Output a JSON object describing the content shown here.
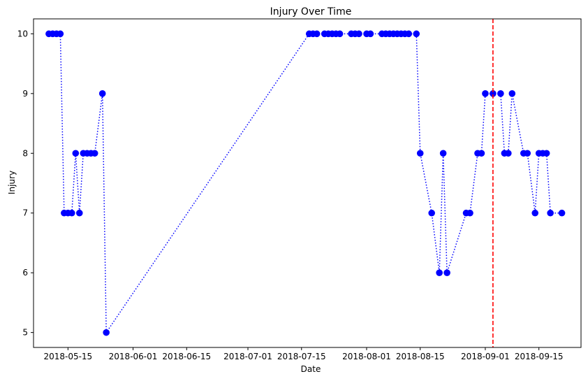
{
  "chart_data": {
    "type": "line",
    "title": "Injury Over Time",
    "xlabel": "Date",
    "ylabel": "Injury",
    "x_ticks": [
      "2018-05-15",
      "2018-06-01",
      "2018-06-15",
      "2018-07-01",
      "2018-07-15",
      "2018-08-01",
      "2018-08-15",
      "2018-09-01",
      "2018-09-15"
    ],
    "y_ticks": [
      5,
      6,
      7,
      8,
      9,
      10
    ],
    "xlim": [
      "2018-05-06",
      "2018-09-26"
    ],
    "ylim": [
      4.75,
      10.25
    ],
    "grid": false,
    "series": [
      {
        "color": "#0000ff",
        "line_style": "dotted",
        "marker": "circle",
        "points": [
          [
            "2018-05-10",
            10
          ],
          [
            "2018-05-11",
            10
          ],
          [
            "2018-05-12",
            10
          ],
          [
            "2018-05-13",
            10
          ],
          [
            "2018-05-14",
            7
          ],
          [
            "2018-05-15",
            7
          ],
          [
            "2018-05-16",
            7
          ],
          [
            "2018-05-17",
            8
          ],
          [
            "2018-05-18",
            7
          ],
          [
            "2018-05-19",
            8
          ],
          [
            "2018-05-20",
            8
          ],
          [
            "2018-05-21",
            8
          ],
          [
            "2018-05-22",
            8
          ],
          [
            "2018-05-24",
            9
          ],
          [
            "2018-05-25",
            5
          ],
          [
            "2018-07-17",
            10
          ],
          [
            "2018-07-18",
            10
          ],
          [
            "2018-07-19",
            10
          ],
          [
            "2018-07-21",
            10
          ],
          [
            "2018-07-22",
            10
          ],
          [
            "2018-07-23",
            10
          ],
          [
            "2018-07-24",
            10
          ],
          [
            "2018-07-25",
            10
          ],
          [
            "2018-07-28",
            10
          ],
          [
            "2018-07-29",
            10
          ],
          [
            "2018-07-30",
            10
          ],
          [
            "2018-08-01",
            10
          ],
          [
            "2018-08-02",
            10
          ],
          [
            "2018-08-05",
            10
          ],
          [
            "2018-08-06",
            10
          ],
          [
            "2018-08-07",
            10
          ],
          [
            "2018-08-08",
            10
          ],
          [
            "2018-08-09",
            10
          ],
          [
            "2018-08-10",
            10
          ],
          [
            "2018-08-11",
            10
          ],
          [
            "2018-08-12",
            10
          ],
          [
            "2018-08-14",
            10
          ],
          [
            "2018-08-15",
            8
          ],
          [
            "2018-08-18",
            7
          ],
          [
            "2018-08-20",
            6
          ],
          [
            "2018-08-21",
            8
          ],
          [
            "2018-08-22",
            6
          ],
          [
            "2018-08-27",
            7
          ],
          [
            "2018-08-28",
            7
          ],
          [
            "2018-08-30",
            8
          ],
          [
            "2018-08-31",
            8
          ],
          [
            "2018-09-01",
            9
          ],
          [
            "2018-09-03",
            9
          ],
          [
            "2018-09-05",
            9
          ],
          [
            "2018-09-06",
            8
          ],
          [
            "2018-09-07",
            8
          ],
          [
            "2018-09-08",
            9
          ],
          [
            "2018-09-11",
            8
          ],
          [
            "2018-09-12",
            8
          ],
          [
            "2018-09-14",
            7
          ],
          [
            "2018-09-15",
            8
          ],
          [
            "2018-09-16",
            8
          ],
          [
            "2018-09-17",
            8
          ],
          [
            "2018-09-18",
            7
          ],
          [
            "2018-09-21",
            7
          ]
        ]
      }
    ],
    "reference_line": {
      "orientation": "vertical",
      "x": "2018-09-03",
      "color": "#ff0000",
      "line_style": "dashed"
    }
  }
}
